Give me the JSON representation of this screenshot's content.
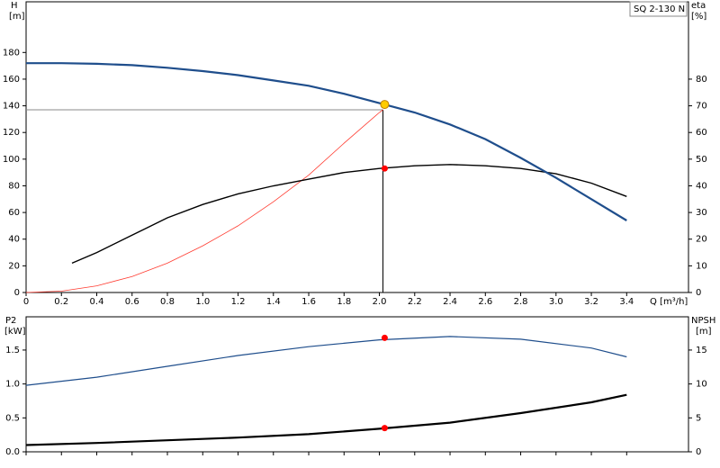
{
  "chart_data": [
    {
      "type": "line",
      "title": "SQ 2-130 N",
      "ylabel": [
        "H",
        "[m]"
      ],
      "y2label": [
        "eta",
        "[%]"
      ],
      "xlabel": "Q [m³/h]",
      "xlim": [
        0,
        3.75
      ],
      "ylim": [
        0,
        218
      ],
      "y2lim": [
        0,
        109
      ],
      "xtick_labels": true,
      "xticks": [
        0,
        0.2,
        0.4,
        0.6,
        0.8,
        {
          "value": 1,
          "label": "1.0"
        },
        1.2,
        1.4,
        1.6,
        1.8,
        {
          "value": 2,
          "label": "2.0"
        },
        2.2,
        2.4,
        2.6,
        2.8,
        {
          "value": 3,
          "label": "3.0"
        },
        3.2,
        3.4
      ],
      "yticks": [
        0,
        20,
        40,
        60,
        80,
        100,
        120,
        140,
        160,
        180
      ],
      "y2ticks": [
        0,
        10,
        20,
        30,
        40,
        50,
        60,
        70,
        80
      ],
      "series": [
        {
          "color": "#888888",
          "width": 1,
          "x": [
            0,
            2.02
          ],
          "values": [
            137,
            137
          ]
        },
        {
          "color": "#000000",
          "width": 1,
          "x": [
            2.02,
            2.02
          ],
          "values": [
            137,
            0
          ]
        },
        {
          "color": "#ff3b30",
          "width": 0.8,
          "x": [
            0,
            0.2,
            0.4,
            0.6,
            0.8,
            1.0,
            1.2,
            1.4,
            1.6,
            1.8,
            2.0,
            2.02
          ],
          "values": [
            0,
            1,
            5,
            12,
            22,
            35,
            50,
            68,
            88,
            112,
            135,
            137
          ]
        },
        {
          "color": "#000000",
          "width": 1.4,
          "axis": "y2",
          "x": [
            0.26,
            0.4,
            0.6,
            0.8,
            1.0,
            1.2,
            1.4,
            1.6,
            1.8,
            2.0,
            2.2,
            2.4,
            2.6,
            2.8,
            3.0,
            3.2,
            3.4
          ],
          "values": [
            11,
            15,
            21.5,
            28,
            33,
            37,
            40,
            42.5,
            45,
            46.5,
            47.5,
            48,
            47.5,
            46.5,
            44.5,
            41,
            36
          ]
        },
        {
          "color": "#1f4e8c",
          "width": 2.2,
          "x": [
            0,
            0.2,
            0.4,
            0.6,
            0.8,
            1.0,
            1.2,
            1.4,
            1.6,
            1.8,
            2.0,
            2.2,
            2.4,
            2.6,
            2.8,
            3.0,
            3.2,
            3.4
          ],
          "values": [
            172,
            172,
            171.5,
            170.5,
            168.5,
            166,
            163,
            159,
            155,
            149,
            142,
            135,
            126,
            115,
            101,
            86,
            70,
            54
          ]
        },
        {
          "color": "#ff0000",
          "marker": true,
          "axis": "y2",
          "x": [
            2.03
          ],
          "values": [
            46.5
          ]
        },
        {
          "color": "#ffcc00",
          "marker": true,
          "x": [
            2.03
          ],
          "values": [
            141
          ]
        }
      ]
    },
    {
      "type": "line",
      "ylabel": [
        "P2",
        "[kW]"
      ],
      "y2label": [
        "NPSH",
        "[m]"
      ],
      "xlim": [
        0,
        3.75
      ],
      "ylim": [
        0,
        1.99
      ],
      "y2lim": [
        0,
        19.9
      ],
      "xtick_labels": false,
      "xticks": [
        0,
        0.2,
        0.4,
        0.6,
        0.8,
        1,
        1.2,
        1.4,
        1.6,
        1.8,
        2,
        2.2,
        2.4,
        2.6,
        2.8,
        3,
        3.2,
        3.4
      ],
      "yticks": [
        {
          "value": 0,
          "label": "0.0"
        },
        0.5,
        {
          "value": 1,
          "label": "1.0"
        },
        1.5
      ],
      "y2ticks": [
        0,
        5,
        10,
        15
      ],
      "series": [
        {
          "color": "#1f4e8c",
          "width": 1.2,
          "x": [
            0,
            0.4,
            0.8,
            1.2,
            1.6,
            2.0,
            2.4,
            2.8,
            3.2,
            3.4
          ],
          "values": [
            0.98,
            1.1,
            1.26,
            1.42,
            1.55,
            1.65,
            1.7,
            1.66,
            1.53,
            1.4
          ]
        },
        {
          "color": "#000000",
          "width": 2.2,
          "axis": "y2",
          "x": [
            0,
            0.4,
            0.8,
            1.2,
            1.6,
            2.0,
            2.4,
            2.8,
            3.2,
            3.4
          ],
          "values": [
            1,
            1.3,
            1.7,
            2.1,
            2.6,
            3.4,
            4.3,
            5.7,
            7.3,
            8.4
          ]
        },
        {
          "color": "#ff0000",
          "marker": true,
          "x": [
            2.03
          ],
          "values": [
            1.68
          ]
        },
        {
          "color": "#ff0000",
          "marker": true,
          "axis": "y2",
          "x": [
            2.03
          ],
          "values": [
            3.5
          ]
        }
      ]
    }
  ]
}
